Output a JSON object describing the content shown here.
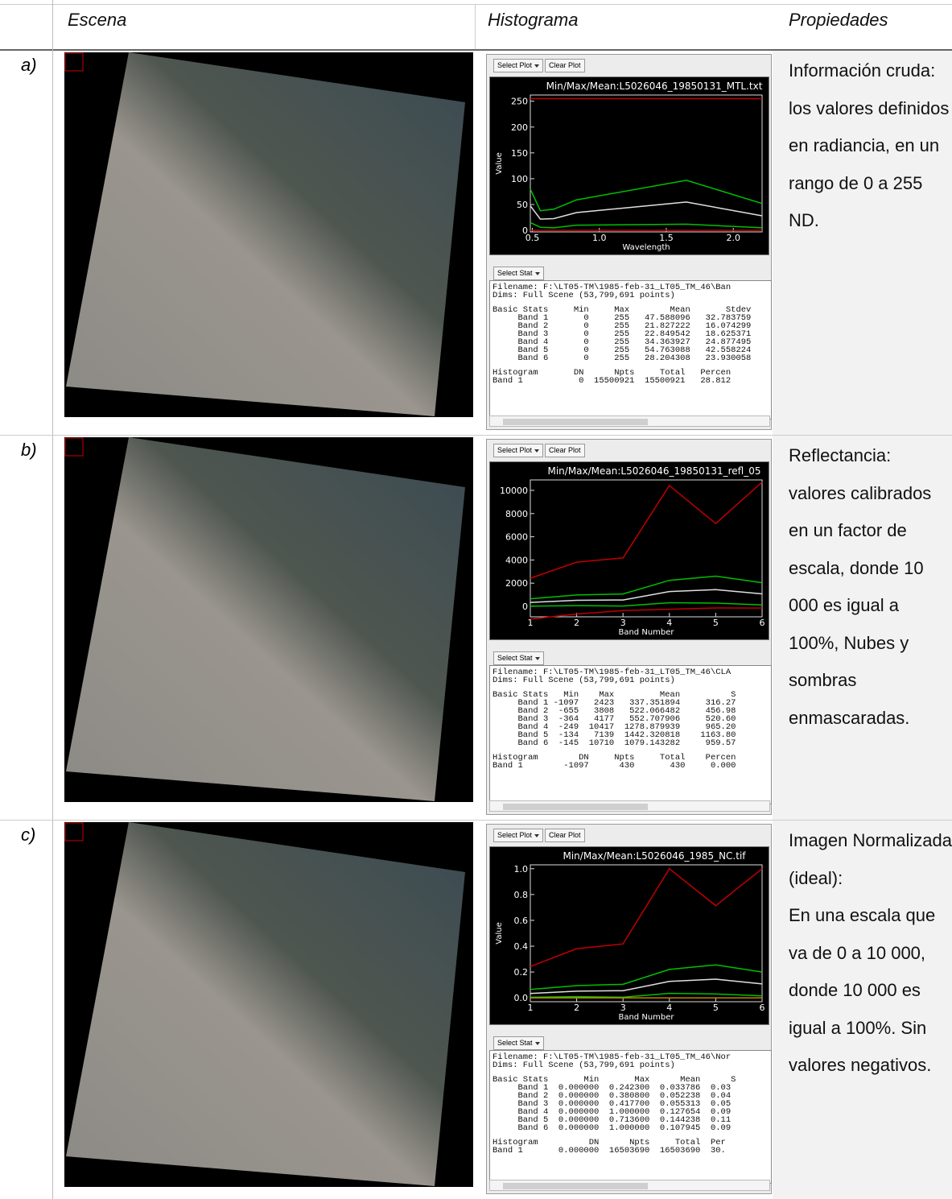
{
  "header": {
    "columns": [
      "Escena",
      "Histograma",
      "Propiedades"
    ]
  },
  "rows": [
    {
      "label": "a)",
      "histogram": {
        "buttons": [
          "Select Plot",
          "Clear Plot"
        ],
        "stat_button": "Select Stat",
        "chart_data": {
          "type": "line",
          "title": "Min/Max/Mean:L5026046_19850131_MTL.txt",
          "xlabel": "Wavelength",
          "ylabel": "Value",
          "x": [
            0.485,
            0.56,
            0.66,
            0.83,
            1.65,
            2.215
          ],
          "xlim": [
            0.485,
            2.215
          ],
          "ylim": [
            -3,
            262
          ],
          "xticks": [
            0.5,
            {
              "value": 1.0,
              "label": "1.0"
            },
            1.5,
            {
              "value": 2.0,
              "label": "2.0"
            }
          ],
          "yticks": [
            0,
            50,
            100,
            150,
            200,
            250
          ],
          "series": [
            {
              "color": "#c00000",
              "values": [
                255,
                255,
                255,
                255,
                255,
                255
              ]
            },
            {
              "color": "#00c000",
              "values": [
                80,
                38,
                41,
                59,
                97,
                52
              ]
            },
            {
              "color": "#e0e0e0",
              "values": [
                47.6,
                21.8,
                22.8,
                34.4,
                54.8,
                28.2
              ]
            },
            {
              "color": "#00c000",
              "values": [
                15,
                6,
                5,
                10,
                12,
                5
              ]
            },
            {
              "color": "#c00000",
              "values": [
                0,
                0,
                0,
                0,
                0,
                0
              ]
            }
          ]
        },
        "stats": {
          "file": [
            "Filename: F:\\LT05-TM\\1985-feb-31_LT05_TM_46\\Ban",
            "Dims: Full Scene (53,799,691 points)"
          ],
          "basic": [
            "Basic Stats     Min     Max        Mean       Stdev",
            "     Band 1       0     255   47.588096   32.783759",
            "     Band 2       0     255   21.827222   16.074299",
            "     Band 3       0     255   22.849542   18.625371",
            "     Band 4       0     255   34.363927   24.877495",
            "     Band 5       0     255   54.763088   42.558224",
            "     Band 6       0     255   28.204308   23.930058"
          ],
          "histogram": [
            "Histogram       DN      Npts     Total   Percen",
            "Band 1           0  15500921  15500921   28.812"
          ]
        }
      },
      "properties": [
        "Información cruda: los valores definidos en radiancia, en un rango de 0 a 255 ND."
      ]
    },
    {
      "label": "b)",
      "histogram": {
        "buttons": [
          "Select Plot",
          "Clear Plot"
        ],
        "stat_button": "Select Stat",
        "chart_data": {
          "type": "line",
          "title": "Min/Max/Mean:L5026046_19850131_refl_05",
          "xlabel": "Band Number",
          "x": [
            1,
            2,
            3,
            4,
            5,
            6
          ],
          "xlim": [
            1,
            6
          ],
          "ylim": [
            -900,
            10900
          ],
          "xticks": [
            1,
            2,
            3,
            4,
            5,
            6
          ],
          "yticks": [
            0,
            2000,
            4000,
            6000,
            8000,
            10000
          ],
          "series": [
            {
              "color": "#c00000",
              "values": [
                2423,
                3808,
                4177,
                10417,
                7139,
                10710
              ]
            },
            {
              "color": "#00c000",
              "values": [
                654,
                979,
                1073,
                2244,
                2606,
                2039
              ]
            },
            {
              "color": "#e0e0e0",
              "values": [
                337,
                522,
                553,
                1279,
                1442,
                1079
              ]
            },
            {
              "color": "#00c000",
              "values": [
                21,
                65,
                32,
                314,
                279,
                120
              ]
            },
            {
              "color": "#c00000",
              "values": [
                -1097,
                -655,
                -364,
                -249,
                -134,
                -145
              ]
            }
          ]
        },
        "stats": {
          "file": [
            "Filename: F:\\LT05-TM\\1985-feb-31_LT05_TM_46\\CLA",
            "Dims: Full Scene (53,799,691 points)"
          ],
          "basic": [
            "Basic Stats   Min    Max         Mean          S",
            "     Band 1 -1097   2423   337.351894     316.27",
            "     Band 2  -655   3808   522.066482     456.98",
            "     Band 3  -364   4177   552.707906     520.60",
            "     Band 4  -249  10417  1278.879939     965.20",
            "     Band 5  -134   7139  1442.320818    1163.80",
            "     Band 6  -145  10710  1079.143282     959.57"
          ],
          "histogram": [
            "Histogram        DN     Npts     Total    Percen",
            "Band 1        -1097      430       430     0.000"
          ]
        }
      },
      "properties": [
        "Reflectancia: valores calibrados en un factor de escala, donde 10 000 es igual a 100%, Nubes y sombras enmascaradas."
      ]
    },
    {
      "label": "c)",
      "histogram": {
        "buttons": [
          "Select Plot",
          "Clear Plot"
        ],
        "stat_button": "Select Stat",
        "chart_data": {
          "type": "line",
          "title": "Min/Max/Mean:L5026046_1985_NC.tif",
          "xlabel": "Band Number",
          "ylabel": "Value",
          "x": [
            1,
            2,
            3,
            4,
            5,
            6
          ],
          "xlim": [
            1,
            6
          ],
          "ylim": [
            -0.03,
            1.03
          ],
          "xticks": [
            1,
            2,
            3,
            4,
            5,
            6
          ],
          "yticks": [
            {
              "value": 0,
              "label": "0.0"
            },
            0.2,
            0.4,
            0.6,
            0.8,
            {
              "value": 1,
              "label": "1.0"
            }
          ],
          "series": [
            {
              "color": "#c00000",
              "values": [
                0.2423,
                0.3808,
                0.4177,
                1.0,
                0.7136,
                1.0
              ]
            },
            {
              "color": "#00c000",
              "values": [
                0.065,
                0.095,
                0.105,
                0.22,
                0.255,
                0.2
              ]
            },
            {
              "color": "#e0e0e0",
              "values": [
                0.0338,
                0.0522,
                0.0553,
                0.1277,
                0.1442,
                0.1079
              ]
            },
            {
              "color": "#00c000",
              "values": [
                0.005,
                0.01,
                0.005,
                0.035,
                0.03,
                0.015
              ]
            },
            {
              "color": "#c08000",
              "values": [
                0,
                0,
                0,
                0,
                0,
                0
              ]
            }
          ]
        },
        "stats": {
          "file": [
            "Filename: F:\\LT05-TM\\1985-feb-31_LT05_TM_46\\Nor",
            "Dims: Full Scene (53,799,691 points)"
          ],
          "basic": [
            "Basic Stats       Min       Max      Mean      S",
            "     Band 1  0.000000  0.242300  0.033786  0.03",
            "     Band 2  0.000000  0.380800  0.052238  0.04",
            "     Band 3  0.000000  0.417700  0.055313  0.05",
            "     Band 4  0.000000  1.000000  0.127654  0.09",
            "     Band 5  0.000000  0.713600  0.144238  0.11",
            "     Band 6  0.000000  1.000000  0.107945  0.09"
          ],
          "histogram": [
            "Histogram          DN      Npts     Total  Per",
            "Band 1       0.000000  16503690  16503690  30."
          ]
        }
      },
      "properties": [
        "Imagen Normalizada (ideal):",
        "En una escala que va de 0 a 10 000, donde 10 000 es igual a 100%. Sin valores negativos."
      ]
    }
  ]
}
